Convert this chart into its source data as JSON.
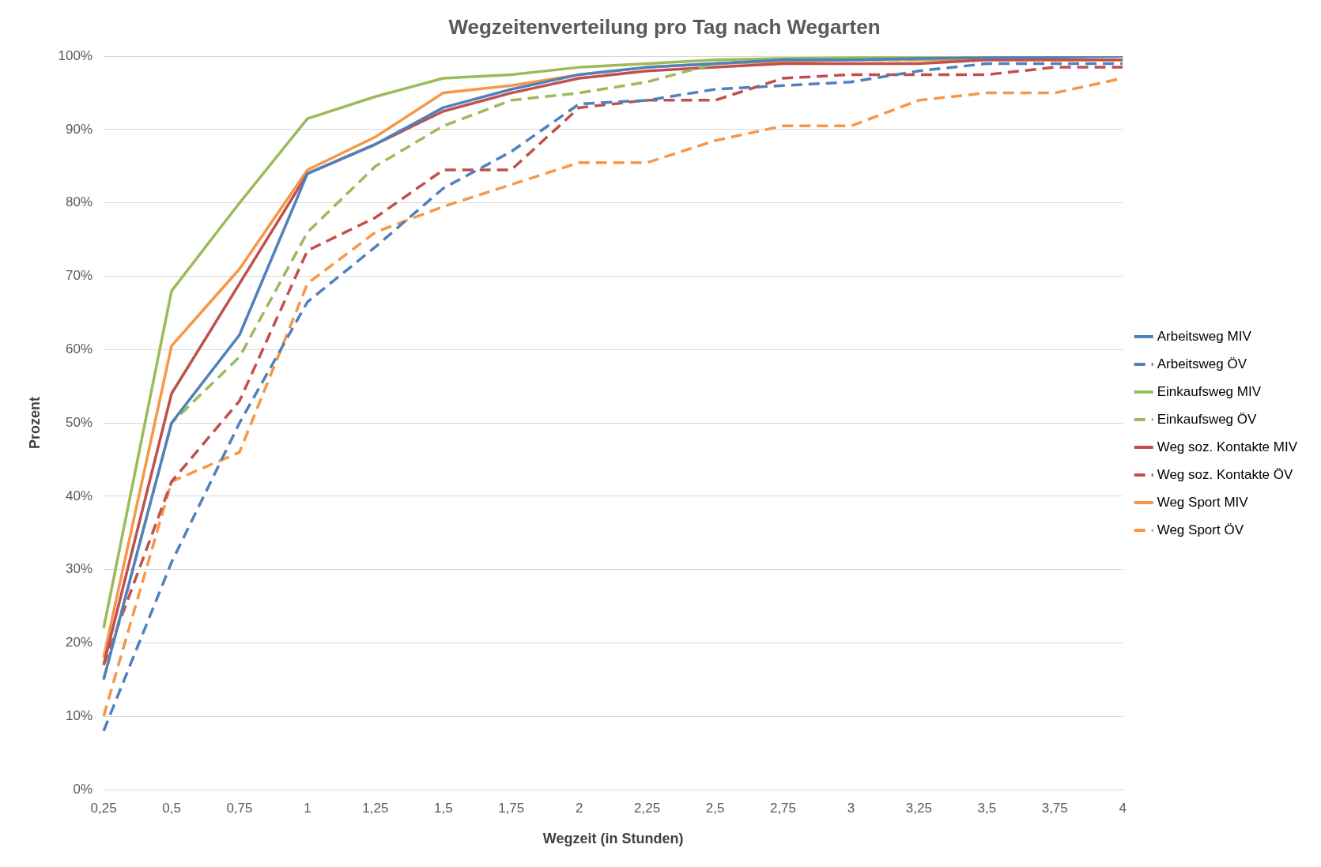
{
  "chart_data": {
    "type": "line",
    "title": "Wegzeitenverteilung pro Tag nach Wegarten",
    "xlabel": "Wegzeit (in Stunden)",
    "ylabel": "Prozent",
    "categories": [
      "0,25",
      "0,5",
      "0,75",
      "1",
      "1,25",
      "1,5",
      "1,75",
      "2",
      "2,25",
      "2,5",
      "2,75",
      "3",
      "3,25",
      "3,5",
      "3,75",
      "4"
    ],
    "ylim": [
      0,
      100
    ],
    "yticks": [
      {
        "value": 0,
        "label": "0%"
      },
      {
        "value": 10,
        "label": "10%"
      },
      {
        "value": 20,
        "label": "20%"
      },
      {
        "value": 30,
        "label": "30%"
      },
      {
        "value": 40,
        "label": "40%"
      },
      {
        "value": 50,
        "label": "50%"
      },
      {
        "value": 60,
        "label": "60%"
      },
      {
        "value": 70,
        "label": "70%"
      },
      {
        "value": 80,
        "label": "80%"
      },
      {
        "value": 90,
        "label": "90%"
      },
      {
        "value": 100,
        "label": "100%"
      }
    ],
    "grid": "y",
    "legend": "right",
    "marker": "none",
    "series": [
      {
        "name": "Arbeitsweg MIV",
        "color": "#4f81bd",
        "line_style": "solid",
        "values": [
          15,
          50,
          62,
          84,
          88,
          93,
          95.5,
          97.5,
          98.5,
          99,
          99.5,
          99.5,
          99.7,
          99.8,
          99.9,
          100
        ]
      },
      {
        "name": "Arbeitsweg ÖV",
        "color": "#4f81bd",
        "line_style": "dashed",
        "values": [
          8,
          31,
          50,
          66.5,
          74,
          82,
          87,
          93.5,
          94,
          95.5,
          96,
          96.5,
          98,
          99,
          99,
          99
        ]
      },
      {
        "name": "Einkaufsweg MIV",
        "color": "#9bbb59",
        "line_style": "solid",
        "values": [
          22,
          68,
          80,
          91.5,
          94.5,
          97,
          97.5,
          98.5,
          99,
          99.5,
          99.7,
          99.8,
          100,
          100,
          100,
          100
        ]
      },
      {
        "name": "Einkaufsweg ÖV",
        "color": "#9bbb59",
        "line_style": "dashed",
        "values": [
          15,
          50,
          59,
          76,
          85,
          90.5,
          94,
          95,
          96.5,
          99,
          99.5,
          99.5,
          99.5,
          100,
          100,
          100
        ]
      },
      {
        "name": "Weg soz. Kontakte MIV",
        "color": "#c0504d",
        "line_style": "solid",
        "values": [
          17,
          54,
          69,
          84,
          88,
          92.5,
          95,
          97,
          98,
          98.5,
          99,
          99,
          99,
          99.5,
          99.5,
          99.5
        ]
      },
      {
        "name": "Weg soz. Kontakte ÖV",
        "color": "#c0504d",
        "line_style": "dashed",
        "values": [
          17,
          42,
          53,
          73.5,
          78,
          84.5,
          84.5,
          93,
          94,
          94,
          97,
          97.5,
          97.5,
          97.5,
          98.5,
          98.5
        ]
      },
      {
        "name": "Weg Sport MIV",
        "color": "#f79646",
        "line_style": "solid",
        "values": [
          18,
          60.5,
          71,
          84.5,
          89,
          95,
          96,
          97.5,
          98.5,
          99,
          99.3,
          99.5,
          99.5,
          99.5,
          99.5,
          99.5
        ]
      },
      {
        "name": "Weg Sport ÖV",
        "color": "#f79646",
        "line_style": "dashed",
        "values": [
          10,
          42,
          46,
          69,
          76,
          79.5,
          82.5,
          85.5,
          85.5,
          88.5,
          90.5,
          90.5,
          94,
          95,
          95,
          97
        ]
      }
    ]
  }
}
